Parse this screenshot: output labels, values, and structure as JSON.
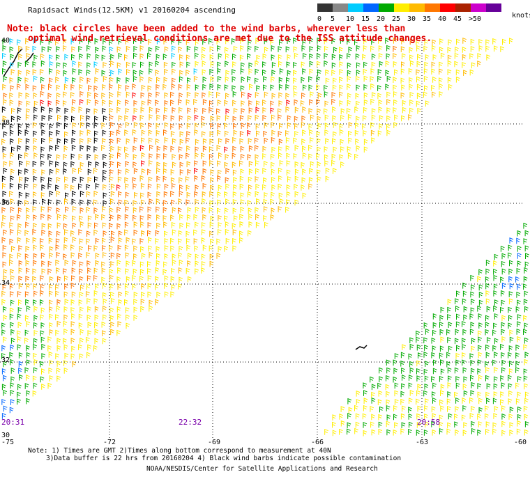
{
  "title": "Rapidsact Winds(12.5KM) v1 20160204 ascending",
  "note_line1": "Note: black circles have been added to the wind barbs, wherever less than",
  "note_line2": "optimal wind retrieval conditions are met due to the ISS attitude changes.",
  "legend": {
    "labels": [
      "0",
      "5",
      "10",
      "15",
      "20",
      "25",
      "30",
      "35",
      "40",
      "45",
      ">50"
    ],
    "units": "knots",
    "colors": [
      "#333333",
      "#888888",
      "#00ccff",
      "#0066ff",
      "#00aa00",
      "#ffee00",
      "#ffbb00",
      "#ff7700",
      "#ff0000",
      "#aa2200",
      "#cc00cc",
      "#660099"
    ]
  },
  "lat_labels": [
    "40",
    "38",
    "36",
    "34",
    "32",
    "30"
  ],
  "lon_labels": [
    "-75",
    "-72",
    "-69",
    "-66",
    "-63",
    "-60"
  ],
  "time_labels": [
    "20:31",
    "22:32",
    "20:58"
  ],
  "footer": {
    "line1": "Note: 1) Times are GMT 2)Times along bottom correspond to measurement at 40N",
    "line2": "3)Data buffer is 22 hrs from 20160204 4) Black wind barbs indicate possible contamination",
    "line3": "NOAA/NESDIS/Center for Satellite Applications and Research"
  }
}
